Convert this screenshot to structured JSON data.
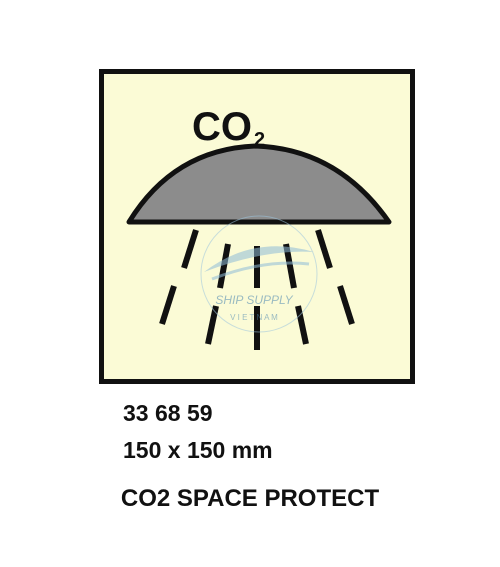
{
  "sign": {
    "gas_label_main": "CO",
    "gas_label_sub": "2",
    "watermark_line1": "SHIP SUPPLY",
    "watermark_line2": "V I E T N A M",
    "background_color": "#fbfbd6",
    "dome_color": "#8c8c8c",
    "border_color": "#111111"
  },
  "product": {
    "code": "33 68 59",
    "size": "150 x 150 mm",
    "name": "CO2 SPACE PROTECT"
  }
}
